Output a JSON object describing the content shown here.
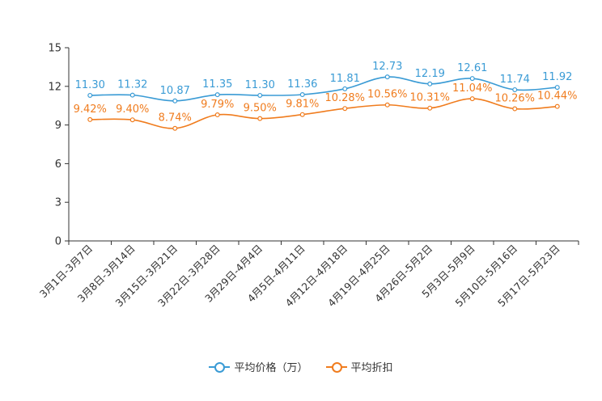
{
  "chart_data": {
    "type": "line",
    "title": "",
    "xlabel": "",
    "ylabel": "",
    "ylim": [
      0,
      15
    ],
    "yticks": [
      0,
      3,
      6,
      9,
      12,
      15
    ],
    "categories": [
      "3月1日-3月7日",
      "3月8日-3月14日",
      "3月15日-3月21日",
      "3月22日-3月28日",
      "3月29日-4月4日",
      "4月5日-4月11日",
      "4月12日-4月18日",
      "4月19日-4月25日",
      "4月26日-5月2日",
      "5月3日-5月9日",
      "5月10日-5月16日",
      "5月17日-5月23日"
    ],
    "series": [
      {
        "name": "平均价格（万）",
        "color": "#3a9bd5",
        "values": [
          11.3,
          11.32,
          10.87,
          11.35,
          11.3,
          11.36,
          11.81,
          12.73,
          12.19,
          12.61,
          11.74,
          11.92
        ],
        "labels": [
          "11.30",
          "11.32",
          "10.87",
          "11.35",
          "11.30",
          "11.36",
          "11.81",
          "12.73",
          "12.19",
          "12.61",
          "11.74",
          "11.92"
        ]
      },
      {
        "name": "平均折扣",
        "color": "#f07c1e",
        "values": [
          9.42,
          9.4,
          8.74,
          9.79,
          9.5,
          9.81,
          10.28,
          10.56,
          10.31,
          11.04,
          10.26,
          10.44
        ],
        "labels": [
          "9.42%",
          "9.40%",
          "8.74%",
          "9.79%",
          "9.50%",
          "9.81%",
          "10.28%",
          "10.56%",
          "10.31%",
          "11.04%",
          "10.26%",
          "10.44%"
        ]
      }
    ],
    "legend_position": "bottom-center",
    "grid": false
  }
}
